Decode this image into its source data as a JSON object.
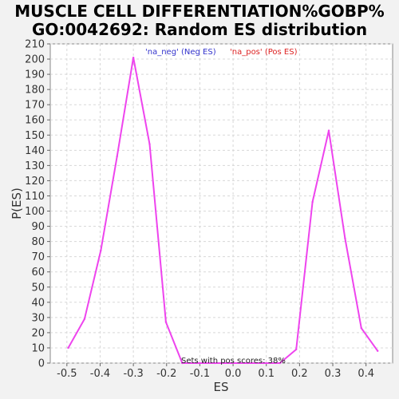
{
  "chart_data": {
    "type": "line",
    "title_line1": "MUSCLE CELL DIFFERENTIATION%GOBP%",
    "title_line2": "GO:0042692: Random ES distribution",
    "xlabel": "ES",
    "ylabel": "P(ES)",
    "xlim": [
      -0.55,
      0.48
    ],
    "ylim": [
      0,
      210
    ],
    "x_ticks": [
      -0.5,
      -0.4,
      -0.3,
      -0.2,
      -0.1,
      0.0,
      0.1,
      0.2,
      0.3,
      0.4
    ],
    "x_tick_labels": [
      "-0.5",
      "-0.4",
      "-0.3",
      "-0.2",
      "-0.1",
      "0.0",
      "0.1",
      "0.2",
      "0.3",
      "0.4"
    ],
    "y_ticks": [
      0,
      10,
      20,
      30,
      40,
      50,
      60,
      70,
      80,
      90,
      100,
      110,
      120,
      130,
      140,
      150,
      160,
      170,
      180,
      190,
      200,
      210
    ],
    "grid": true,
    "legend_position": "top",
    "legend": [
      {
        "label": "'na_neg' (Neg ES)",
        "color": "#3333cc"
      },
      {
        "label": "'na_pos' (Pos ES)",
        "color": "#dd2222"
      }
    ],
    "annotation": "Sets with pos scores: 38%",
    "series": [
      {
        "color": "#ee44ee",
        "x": [
          -0.496,
          -0.447,
          -0.398,
          -0.349,
          -0.3,
          -0.251,
          -0.202,
          -0.153,
          -0.104,
          -0.055,
          -0.006,
          0.043,
          0.092,
          0.141,
          0.19,
          0.239,
          0.288,
          0.337,
          0.386,
          0.435
        ],
        "y": [
          10,
          29,
          74,
          136,
          201,
          144,
          27,
          0,
          0,
          0,
          0,
          0,
          0,
          0,
          9,
          106,
          153,
          82,
          23,
          8
        ]
      }
    ]
  }
}
